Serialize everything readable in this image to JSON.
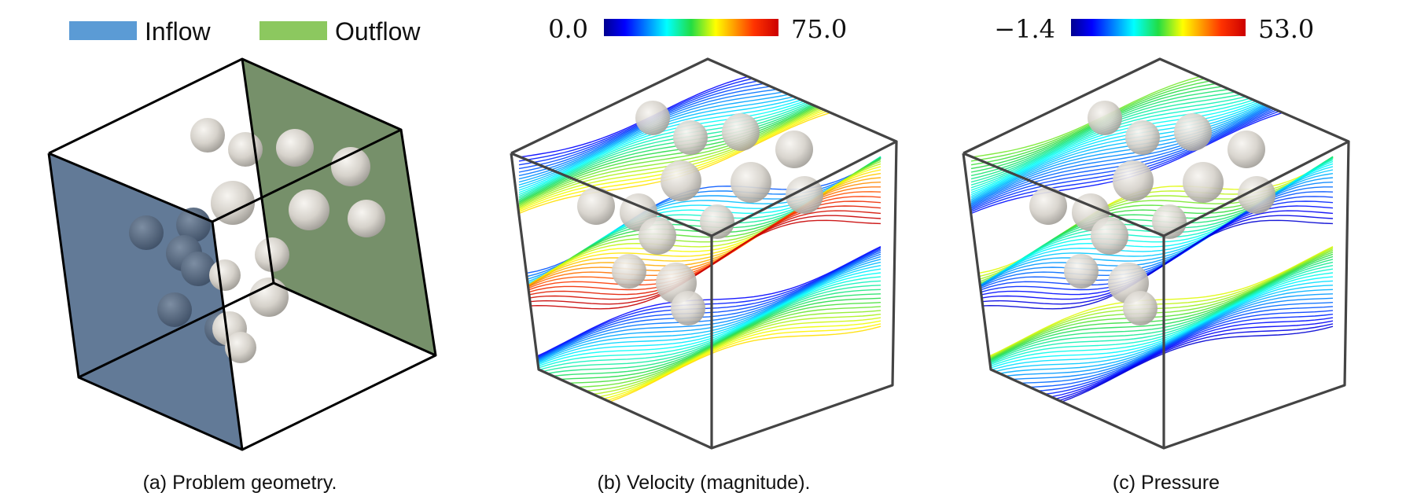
{
  "legend": {
    "inflow_label": "Inflow",
    "outflow_label": "Outflow",
    "inflow_color": "#5b9bd5",
    "outflow_color": "#8cc85f"
  },
  "panels": [
    {
      "caption": "(a) Problem geometry."
    },
    {
      "caption": "(b) Velocity (magnitude).",
      "colorbar": {
        "min_label": "0.0",
        "max_label": "75.0"
      }
    },
    {
      "caption": "(c) Pressure",
      "colorbar": {
        "min_label": "−1.4",
        "max_label": "53.0"
      }
    }
  ],
  "colors": {
    "inflow_face": "#5a7391",
    "outflow_face": "#6f8a62",
    "sphere": "#dcd8d2"
  }
}
